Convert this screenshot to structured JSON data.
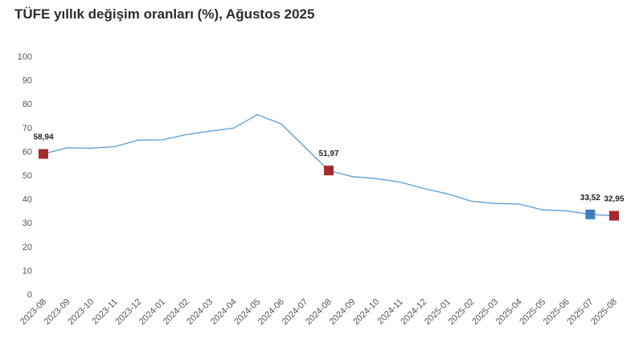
{
  "title": "TÜFE yıllık değişim oranları (%), Ağustos 2025",
  "chart_data": {
    "type": "line",
    "title": "TÜFE yıllık değişim oranları (%), Ağustos 2025",
    "xlabel": "",
    "ylabel": "",
    "ylim": [
      0,
      100
    ],
    "yticks": [
      0,
      10,
      20,
      30,
      40,
      50,
      60,
      70,
      80,
      90,
      100
    ],
    "grid": false,
    "categories": [
      "2023-08",
      "2023-09",
      "2023-10",
      "2023-11",
      "2023-12",
      "2024-01",
      "2024-02",
      "2024-03",
      "2024-04",
      "2024-05",
      "2024-06",
      "2024-07",
      "2024-08",
      "2024-09",
      "2024-10",
      "2024-11",
      "2024-12",
      "2025-01",
      "2025-02",
      "2025-03",
      "2025-04",
      "2025-05",
      "2025-06",
      "2025-07",
      "2025-08"
    ],
    "series": [
      {
        "values": [
          58.94,
          61.53,
          61.36,
          61.98,
          64.77,
          64.86,
          67.07,
          68.5,
          69.8,
          75.45,
          71.6,
          61.78,
          51.97,
          49.38,
          48.58,
          47.09,
          44.38,
          42.12,
          39.05,
          38.1,
          37.86,
          35.41,
          35.05,
          33.52,
          32.95
        ],
        "color": "#5b9bd5"
      }
    ],
    "markers": [
      {
        "index": 0,
        "label": "58,94",
        "color": "#a52a2a"
      },
      {
        "index": 12,
        "label": "51,97",
        "color": "#a52a2a"
      },
      {
        "index": 23,
        "label": "33,52",
        "color": "#3f7fbf"
      },
      {
        "index": 24,
        "label": "32,95",
        "color": "#a52a2a"
      }
    ]
  }
}
